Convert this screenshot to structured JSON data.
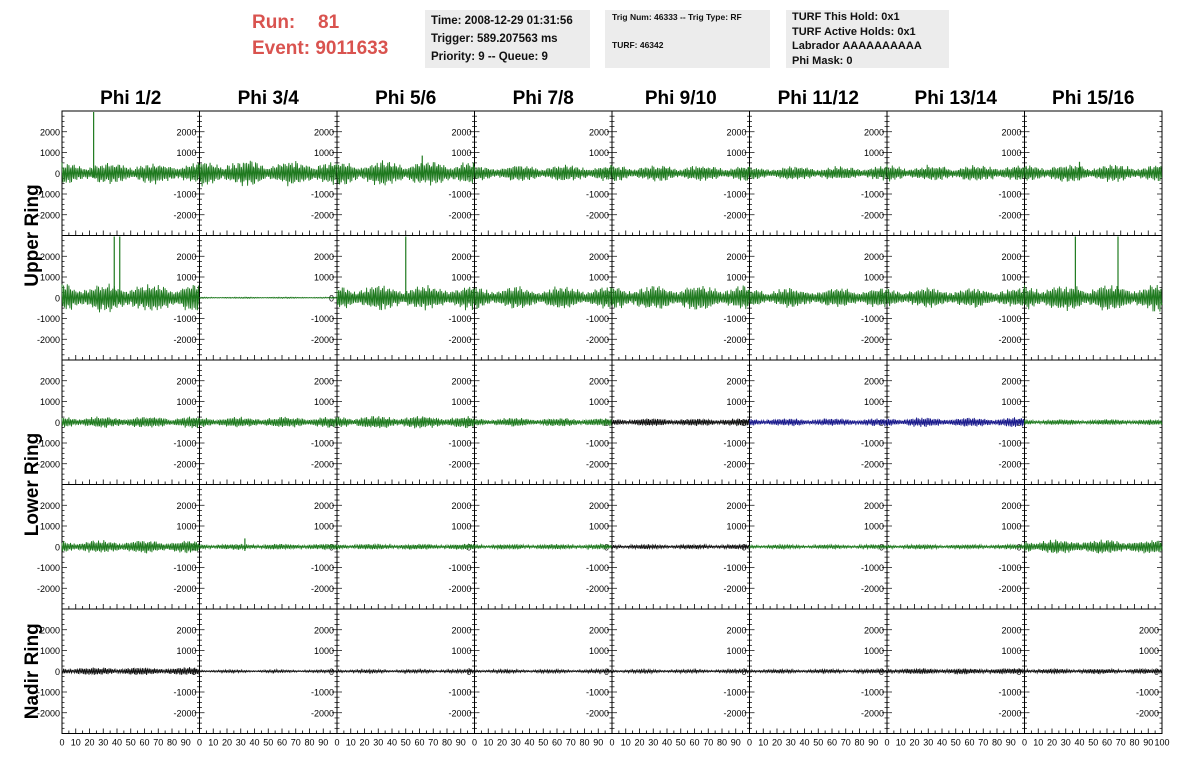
{
  "header": {
    "run_label": "Run:",
    "run_value": "81",
    "event_label": "Event:",
    "event_value": "9011633"
  },
  "info_box_1": {
    "time": "Time: 2008-12-29 01:31:56",
    "trigger": "Trigger: 589.207563 ms",
    "priority": "Priority: 9 -- Queue: 9"
  },
  "info_box_2": {
    "trig": "Trig Num: 46333 -- Trig Type: RF",
    "turf": "TURF: 46342"
  },
  "info_box_3": {
    "hold": "TURF This Hold: 0x1",
    "active": "TURF Active Holds: 0x1",
    "labrador": "Labrador AAAAAAAAAA",
    "phimask": "Phi Mask: 0"
  },
  "colors": {
    "normal": "#1f7a1f",
    "black": "#111111",
    "blue": "#1a1a8c",
    "run_text": "#d9534f",
    "info_bg": "#ececec"
  },
  "chart_data": {
    "type": "line",
    "columns": [
      "Phi 1/2",
      "Phi 3/4",
      "Phi 5/6",
      "Phi 7/8",
      "Phi 9/10",
      "Phi 11/12",
      "Phi 13/14",
      "Phi 15/16"
    ],
    "row_groups": [
      {
        "label": "Upper Ring",
        "rows": [
          0,
          1
        ]
      },
      {
        "label": "Lower Ring",
        "rows": [
          2,
          3
        ]
      },
      {
        "label": "Nadir Ring",
        "rows": [
          4
        ]
      }
    ],
    "xlim": [
      0,
      100
    ],
    "ylim": [
      -3000,
      3000
    ],
    "y_ticks": [
      -2000,
      -1000,
      0,
      1000,
      2000
    ],
    "x_tick_labels": [
      "0",
      "10",
      "20",
      "30",
      "40",
      "50",
      "60",
      "70",
      "80",
      "90",
      "100"
    ],
    "panels": [
      [
        {
          "amp": 550,
          "color": "normal",
          "spikes": [
            {
              "x": 23,
              "v": 3000
            }
          ]
        },
        {
          "amp": 650,
          "color": "normal",
          "spikes": []
        },
        {
          "amp": 650,
          "color": "normal",
          "spikes": [
            {
              "x": 62,
              "v": 900
            }
          ]
        },
        {
          "amp": 420,
          "color": "normal",
          "spikes": []
        },
        {
          "amp": 420,
          "color": "normal",
          "spikes": []
        },
        {
          "amp": 360,
          "color": "normal",
          "spikes": []
        },
        {
          "amp": 420,
          "color": "normal",
          "spikes": []
        },
        {
          "amp": 450,
          "color": "normal",
          "spikes": [
            {
              "x": 40,
              "v": 600
            }
          ]
        }
      ],
      [
        {
          "amp": 750,
          "color": "normal",
          "spikes": [
            {
              "x": 38,
              "v": 3000
            },
            {
              "x": 42,
              "v": 3000
            }
          ]
        },
        {
          "amp": 30,
          "color": "normal",
          "spikes": []
        },
        {
          "amp": 650,
          "color": "normal",
          "spikes": [
            {
              "x": 50,
              "v": 3000
            }
          ]
        },
        {
          "amp": 600,
          "color": "normal",
          "spikes": []
        },
        {
          "amp": 650,
          "color": "normal",
          "spikes": []
        },
        {
          "amp": 520,
          "color": "normal",
          "spikes": []
        },
        {
          "amp": 520,
          "color": "normal",
          "spikes": []
        },
        {
          "amp": 700,
          "color": "normal",
          "spikes": [
            {
              "x": 37,
              "v": 3000
            },
            {
              "x": 68,
              "v": 3000
            }
          ]
        }
      ],
      [
        {
          "amp": 300,
          "color": "normal",
          "spikes": []
        },
        {
          "amp": 280,
          "color": "normal",
          "spikes": []
        },
        {
          "amp": 320,
          "color": "normal",
          "spikes": []
        },
        {
          "amp": 220,
          "color": "normal",
          "spikes": []
        },
        {
          "amp": 200,
          "color": "black",
          "spikes": []
        },
        {
          "amp": 200,
          "color": "blue",
          "spikes": []
        },
        {
          "amp": 250,
          "color": "blue",
          "spikes": []
        },
        {
          "amp": 150,
          "color": "normal",
          "spikes": []
        }
      ],
      [
        {
          "amp": 330,
          "color": "normal",
          "spikes": []
        },
        {
          "amp": 150,
          "color": "normal",
          "spikes": [
            {
              "x": 33,
              "v": 450
            }
          ]
        },
        {
          "amp": 150,
          "color": "normal",
          "spikes": []
        },
        {
          "amp": 130,
          "color": "normal",
          "spikes": []
        },
        {
          "amp": 120,
          "color": "black",
          "spikes": []
        },
        {
          "amp": 110,
          "color": "normal",
          "spikes": []
        },
        {
          "amp": 120,
          "color": "normal",
          "spikes": []
        },
        {
          "amp": 380,
          "color": "normal",
          "spikes": []
        }
      ],
      [
        {
          "amp": 200,
          "color": "black",
          "spikes": []
        },
        {
          "amp": 70,
          "color": "black",
          "spikes": []
        },
        {
          "amp": 90,
          "color": "black",
          "spikes": []
        },
        {
          "amp": 90,
          "color": "black",
          "spikes": []
        },
        {
          "amp": 90,
          "color": "black",
          "spikes": []
        },
        {
          "amp": 100,
          "color": "black",
          "spikes": []
        },
        {
          "amp": 150,
          "color": "black",
          "spikes": []
        },
        {
          "amp": 130,
          "color": "black",
          "spikes": []
        }
      ]
    ]
  }
}
